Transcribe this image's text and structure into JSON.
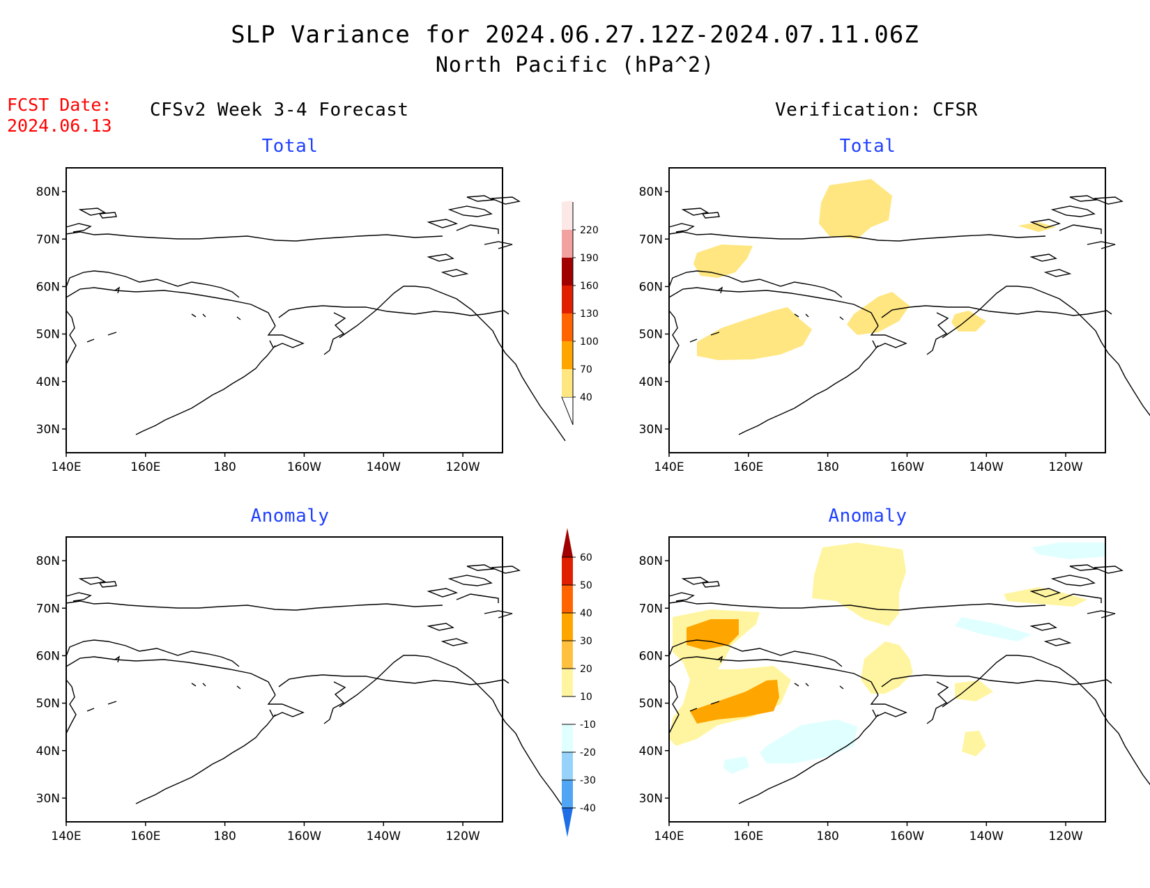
{
  "title_line1": "SLP Variance for 2024.06.27.12Z-2024.07.11.06Z",
  "title_line2": "North Pacific (hPa^2)",
  "fcst_label": "FCST Date:",
  "fcst_date": "2024.06.13",
  "left_column_title": "CFSv2 Week 3-4 Forecast",
  "right_column_title": "Verification: CFSR",
  "panels": {
    "top_left": {
      "title": "Total"
    },
    "top_right": {
      "title": "Total"
    },
    "bottom_left": {
      "title": "Anomaly"
    },
    "bottom_right": {
      "title": "Anomaly"
    }
  },
  "axes": {
    "lon_labels": [
      "140E",
      "160E",
      "180",
      "160W",
      "140W",
      "120W"
    ],
    "lat_labels": [
      "80N",
      "70N",
      "60N",
      "50N",
      "40N",
      "30N"
    ],
    "lon_values": [
      140,
      160,
      180,
      -160,
      -140,
      -120
    ],
    "lat_values": [
      80,
      70,
      60,
      50,
      40,
      30
    ]
  },
  "total_colorbar": {
    "levels": [
      "40",
      "70",
      "100",
      "130",
      "160",
      "190",
      "220"
    ],
    "colors": [
      "#ffe680",
      "#ffa500",
      "#ff6400",
      "#e01e00",
      "#a00000",
      "#f2a0a0",
      "#fde8e8"
    ]
  },
  "anomaly_colorbar": {
    "levels": [
      "60",
      "50",
      "40",
      "30",
      "20",
      "10",
      "-10",
      "-20",
      "-30",
      "-40"
    ],
    "colors": [
      "#a00000",
      "#e01e00",
      "#ff6400",
      "#ffa500",
      "#ffc040",
      "#fff5a0",
      "#ffffff",
      "#e0ffff",
      "#96d2fa",
      "#50a5f5",
      "#1e6ee6"
    ]
  }
}
